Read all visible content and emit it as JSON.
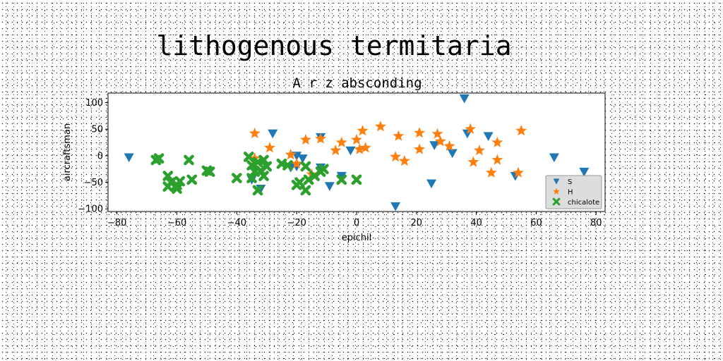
{
  "chart_data": {
    "type": "scatter",
    "title": "lithogenous termitaria",
    "subtitle": "A r z absconding",
    "xlabel": "epichil",
    "ylabel": "aircraftsman",
    "xlim": [
      -83,
      83
    ],
    "ylim": [
      -105,
      118
    ],
    "xticks": [
      -80,
      -60,
      -40,
      -20,
      0,
      20,
      40,
      60,
      80
    ],
    "yticks": [
      -100,
      -50,
      0,
      50,
      100
    ],
    "grid": false,
    "legend_position": "lower-right",
    "series": [
      {
        "name": "S",
        "marker": "triangle-down",
        "color": "#1f77b4",
        "points": [
          [
            -76,
            -3
          ],
          [
            -28,
            42
          ],
          [
            -12,
            35
          ],
          [
            -18,
            -5
          ],
          [
            -20,
            -20
          ],
          [
            -22,
            -22
          ],
          [
            -12,
            -22
          ],
          [
            -32,
            -62
          ],
          [
            -9,
            -57
          ],
          [
            -5,
            -38
          ],
          [
            -2,
            10
          ],
          [
            13,
            -95
          ],
          [
            26,
            20
          ],
          [
            25,
            -52
          ],
          [
            32,
            5
          ],
          [
            36,
            108
          ],
          [
            37,
            42
          ],
          [
            44,
            37
          ],
          [
            53,
            -38
          ],
          [
            66,
            -3
          ],
          [
            76,
            -30
          ],
          [
            -35,
            -45
          ],
          [
            -20,
            0
          ]
        ]
      },
      {
        "name": "H",
        "marker": "star",
        "color": "#ff7f0e",
        "points": [
          [
            -34,
            42
          ],
          [
            -29,
            15
          ],
          [
            -34,
            -5
          ],
          [
            -22,
            2
          ],
          [
            -17,
            30
          ],
          [
            -12,
            32
          ],
          [
            -15,
            -35
          ],
          [
            -20,
            -15
          ],
          [
            -7,
            10
          ],
          [
            -5,
            25
          ],
          [
            0,
            30
          ],
          [
            2,
            47
          ],
          [
            1,
            12
          ],
          [
            3,
            15
          ],
          [
            8,
            55
          ],
          [
            13,
            -2
          ],
          [
            14,
            37
          ],
          [
            16,
            -10
          ],
          [
            21,
            43
          ],
          [
            21,
            12
          ],
          [
            27,
            41
          ],
          [
            28,
            27
          ],
          [
            31,
            18
          ],
          [
            39,
            -12
          ],
          [
            38,
            50
          ],
          [
            41,
            10
          ],
          [
            45,
            -32
          ],
          [
            47,
            25
          ],
          [
            47,
            -8
          ],
          [
            55,
            47
          ],
          [
            54,
            -32
          ]
        ]
      },
      {
        "name": "chicalote",
        "marker": "x-filled",
        "color": "#2ca02c",
        "points": [
          [
            -67,
            -8
          ],
          [
            -66,
            -5
          ],
          [
            -63,
            -38
          ],
          [
            -63,
            -58
          ],
          [
            -62,
            -50
          ],
          [
            -60,
            -62
          ],
          [
            -60,
            -55
          ],
          [
            -59,
            -48
          ],
          [
            -56,
            -8
          ],
          [
            -55,
            -45
          ],
          [
            -50,
            -28
          ],
          [
            -49,
            -30
          ],
          [
            -40,
            -42
          ],
          [
            -36,
            -2
          ],
          [
            -35,
            -18
          ],
          [
            -35,
            -42
          ],
          [
            -34,
            -30
          ],
          [
            -33,
            -65
          ],
          [
            -32,
            -28
          ],
          [
            -31,
            -8
          ],
          [
            -31,
            -38
          ],
          [
            -30,
            -20
          ],
          [
            -25,
            -15
          ],
          [
            -23,
            -18
          ],
          [
            -20,
            -55
          ],
          [
            -17,
            -20
          ],
          [
            -17,
            -65
          ],
          [
            -16,
            -45
          ],
          [
            -14,
            -38
          ],
          [
            -12,
            -30
          ],
          [
            -11,
            -25
          ],
          [
            -5,
            -45
          ],
          [
            0,
            -45
          ],
          [
            -33,
            -12
          ],
          [
            -19,
            -50
          ]
        ]
      }
    ]
  }
}
